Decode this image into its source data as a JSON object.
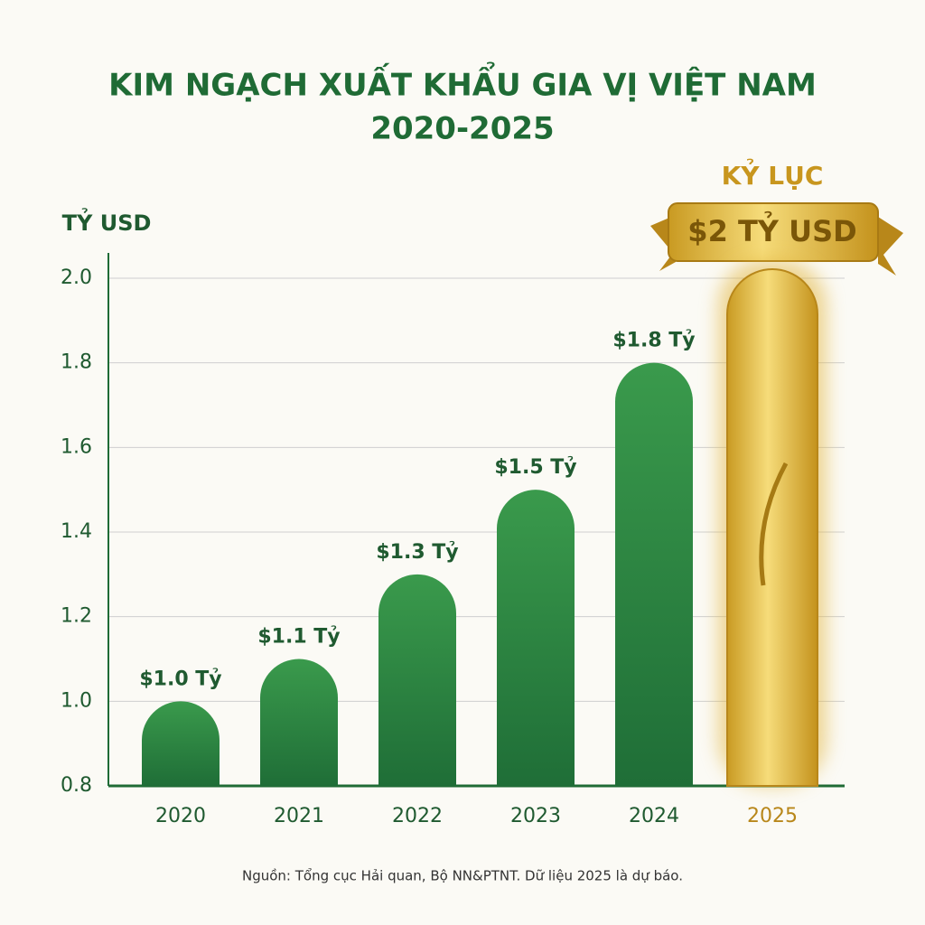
{
  "chart_data": {
    "type": "bar",
    "title": "KIM NGẠCH XUẤT KHẨU GIA VỊ VIỆT NAM",
    "subtitle": "2020-2025",
    "y_label": "TỶ USD",
    "categories": [
      "2020",
      "2021",
      "2022",
      "2023",
      "2024",
      "2025"
    ],
    "values": [
      1.0,
      1.1,
      1.3,
      1.5,
      1.8,
      2.0
    ],
    "value_labels": [
      "$1.0 Tỷ",
      "$1.1 Tỷ",
      "$1.3 Tỷ",
      "$1.5 Tỷ",
      "$1.8 Tỷ",
      null
    ],
    "colors": [
      "#2e8b45",
      "#2e8b45",
      "#2e8b45",
      "#2e8b45",
      "#2e8b45",
      "#e2b53c"
    ],
    "ylim": [
      0.8,
      2.0
    ],
    "yticks": [
      0.8,
      {
        "value": 1,
        "label": "1.0"
      },
      1.2,
      1.4,
      1.6,
      1.8,
      {
        "value": 2,
        "label": "2.0"
      }
    ],
    "grid": true,
    "banner": {
      "title": "KỶ LỤC",
      "text": "$2 TỶ USD"
    },
    "source": "Nguồn: Tổng cục Hải quan, Bộ NN&PTNT. Dữ liệu 2025 là dự báo."
  }
}
